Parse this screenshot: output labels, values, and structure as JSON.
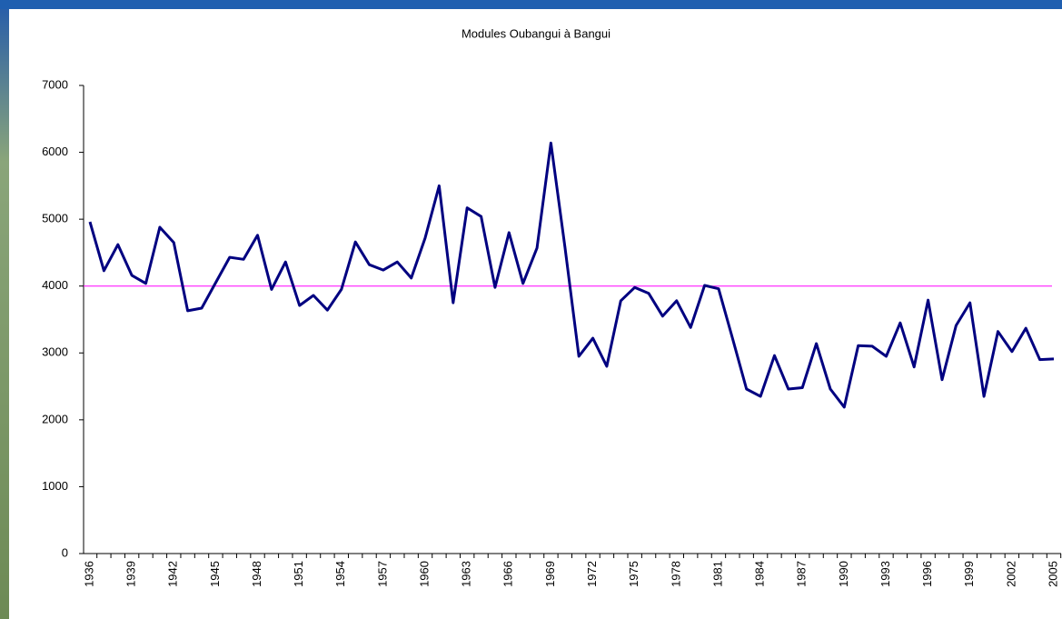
{
  "chart_data": {
    "type": "line",
    "title": "Modules  Oubangui à Bangui",
    "categories": [
      "1936",
      null,
      null,
      "1939",
      null,
      null,
      "1942",
      null,
      null,
      "1945",
      null,
      null,
      "1948",
      null,
      null,
      "1951",
      null,
      null,
      "1954",
      null,
      null,
      "1957",
      null,
      null,
      "1960",
      null,
      null,
      "1963",
      null,
      null,
      "1966",
      null,
      null,
      "1969",
      null,
      null,
      "1972",
      null,
      null,
      "1975",
      null,
      null,
      "1978",
      null,
      null,
      "1981",
      null,
      null,
      "1984",
      null,
      null,
      "1987",
      null,
      null,
      "1990",
      null,
      null,
      "1993",
      null,
      null,
      "1996",
      null,
      null,
      "1999",
      null,
      null,
      "2002",
      null,
      null,
      "2005"
    ],
    "series": [
      {
        "color": "#000080",
        "values": [
          4960,
          4230,
          4620,
          4160,
          4040,
          4880,
          4650,
          3630,
          3670,
          4050,
          4430,
          4400,
          4760,
          3950,
          4360,
          3710,
          3860,
          3640,
          3950,
          4660,
          4320,
          4240,
          4360,
          4120,
          4720,
          5500,
          3750,
          5170,
          5040,
          3980,
          4800,
          4040,
          4570,
          6140,
          4590,
          2950,
          3220,
          2800,
          3780,
          3980,
          3890,
          3550,
          3780,
          3380,
          4010,
          3960,
          3220,
          2460,
          2350,
          2960,
          2460,
          2480,
          3140,
          2460,
          2190,
          3110,
          3100,
          2950,
          3450,
          2790,
          3790,
          2600,
          3410,
          3750,
          2350,
          3320,
          3020,
          3370,
          2900,
          2910
        ]
      }
    ],
    "reference_line": {
      "value": 4000,
      "color": "#ff00ff"
    },
    "ylim": [
      0,
      7000
    ],
    "yticks": [
      0,
      1000,
      2000,
      3000,
      4000,
      5000,
      6000,
      7000
    ],
    "grid": false
  }
}
